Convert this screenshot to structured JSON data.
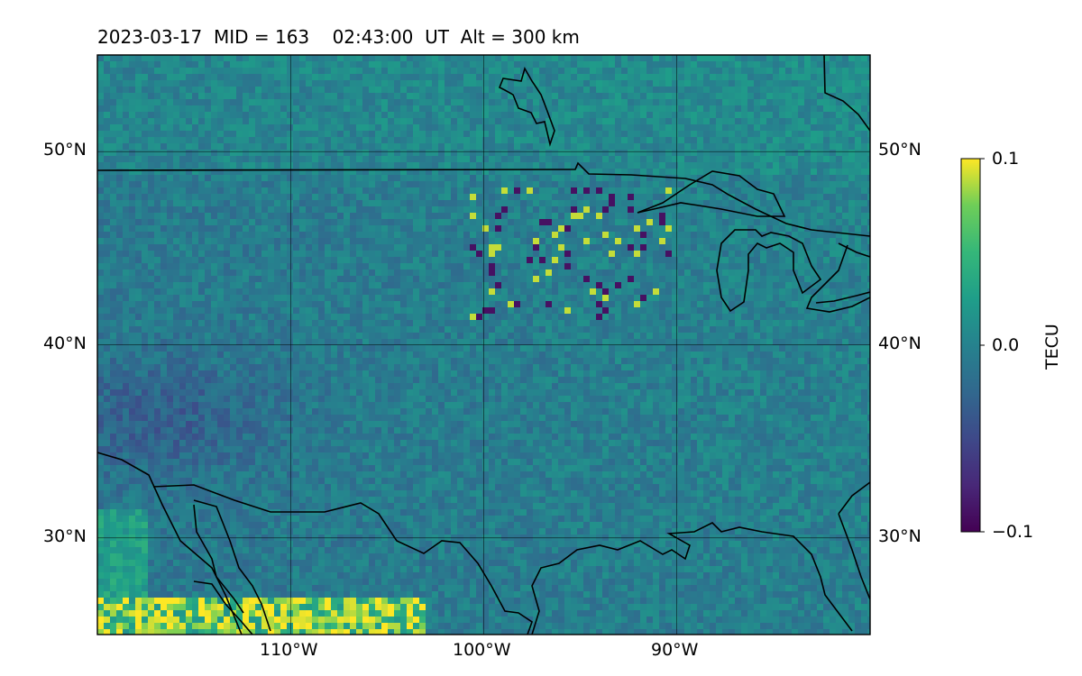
{
  "title": "2023-03-17  MID = 163    02:43:00  UT  Alt = 300 km",
  "map": {
    "lat_range": [
      25,
      55
    ],
    "lon_range": [
      -120,
      -80
    ],
    "lat_ticks": [
      {
        "value": 50,
        "label": "50°N"
      },
      {
        "value": 40,
        "label": "40°N"
      },
      {
        "value": 30,
        "label": "30°N"
      }
    ],
    "lon_ticks": [
      {
        "value": -110,
        "label": "110°W"
      },
      {
        "value": -100,
        "label": "100°W"
      },
      {
        "value": -90,
        "label": "90°W"
      }
    ],
    "gridlines": true
  },
  "colorbar": {
    "label": "TECU",
    "colormap": "viridis",
    "range": [
      -0.1,
      0.1
    ],
    "ticks": [
      {
        "value": 0.1,
        "label": "0.1"
      },
      {
        "value": 0.0,
        "label": "0.0"
      },
      {
        "value": -0.1,
        "label": "−0.1"
      }
    ]
  },
  "chart_data": {
    "type": "heatmap",
    "variable": "TECU",
    "values_note": "Gridded dTEC field; mostly near 0.0, negative (purple) patches west, positive (yellow) along southwest edge and scattered cells near 96W 43-47N"
  }
}
